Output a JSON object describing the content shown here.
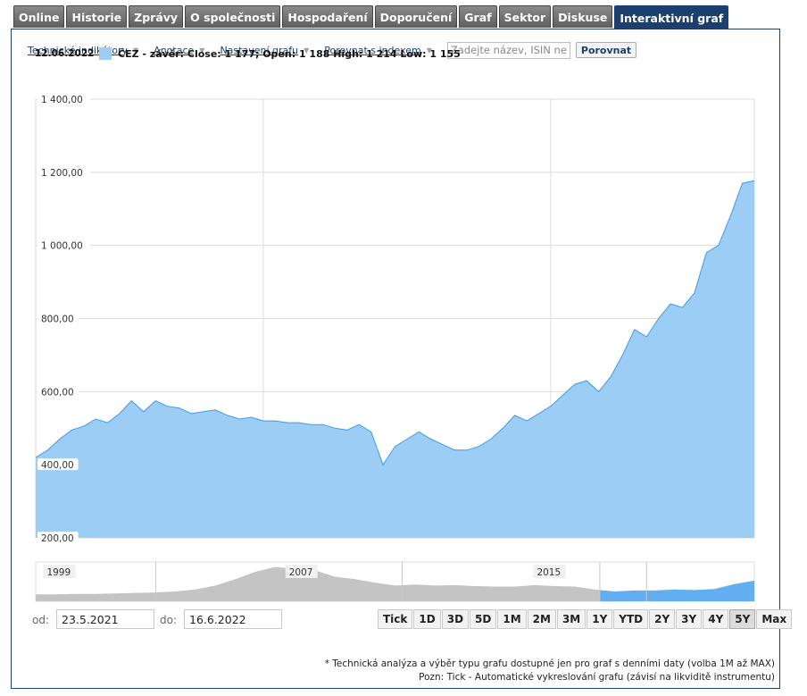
{
  "tabs": [
    "Online",
    "Historie",
    "Zprávy",
    "O společnosti",
    "Hospodaření",
    "Doporučení",
    "Graf",
    "Sektor",
    "Diskuse",
    "Interaktivní graf"
  ],
  "active_tab": "Interaktivní graf",
  "toolbar": {
    "indicators_label": "Technické indikátory",
    "annotations_label": "Anotace",
    "settings_label": "Nastavení grafu",
    "compare_index_label": "Porovnat s indexem",
    "compare_placeholder": "Zadejte název, ISIN neb",
    "compare_button": "Porovnat"
  },
  "legend": {
    "date": "12.06.2022",
    "text": "ČEZ - závěr: Close: 1 177; Open: 1 188 High: 1 214 Low: 1 155",
    "color": "#9ccdf5"
  },
  "range": {
    "from_label": "od:",
    "from_value": "23.5.2021",
    "to_label": "do:",
    "to_value": "16.6.2022"
  },
  "zoom_buttons": [
    "Tick",
    "1D",
    "3D",
    "5D",
    "1M",
    "2M",
    "3M",
    "1Y",
    "YTD",
    "2Y",
    "3Y",
    "4Y",
    "5Y",
    "Max"
  ],
  "zoom_active": "5Y",
  "footnotes": [
    "* Technická analýza a výběr typu grafu dostupné jen pro graf s denními daty (volba 1M až MAX)",
    "Pozn: Tick - Automatické vykreslování grafu (závisí na likviditě instrumentu)"
  ],
  "colors": {
    "accent": "#1c3f6e",
    "series_fill": "#9ccdf5",
    "series_line": "#3d9be9",
    "navigator_fill": "#c4c4c4"
  },
  "chart_data": {
    "type": "area",
    "series": [
      {
        "name": "ČEZ",
        "x": [
          "2017-06",
          "2017-07",
          "2017-08",
          "2017-09",
          "2017-10",
          "2017-11",
          "2017-12",
          "2018-01",
          "2018-02",
          "2018-03",
          "2018-04",
          "2018-05",
          "2018-06",
          "2018-07",
          "2018-08",
          "2018-09",
          "2018-10",
          "2018-11",
          "2018-12",
          "2019-01",
          "2019-02",
          "2019-03",
          "2019-04",
          "2019-05",
          "2019-06",
          "2019-07",
          "2019-08",
          "2019-09",
          "2019-10",
          "2019-11",
          "2019-12",
          "2020-01",
          "2020-02",
          "2020-03",
          "2020-04",
          "2020-05",
          "2020-06",
          "2020-07",
          "2020-08",
          "2020-09",
          "2020-10",
          "2020-11",
          "2020-12",
          "2021-01",
          "2021-02",
          "2021-03",
          "2021-04",
          "2021-05",
          "2021-06",
          "2021-07",
          "2021-08",
          "2021-09",
          "2021-10",
          "2021-11",
          "2021-12",
          "2022-01",
          "2022-02",
          "2022-03",
          "2022-04",
          "2022-05",
          "2022-06"
        ],
        "values": [
          420,
          440,
          470,
          495,
          505,
          525,
          515,
          540,
          575,
          545,
          575,
          560,
          555,
          540,
          545,
          550,
          535,
          525,
          530,
          520,
          520,
          515,
          515,
          510,
          510,
          500,
          495,
          510,
          490,
          400,
          450,
          470,
          490,
          470,
          455,
          440,
          440,
          450,
          470,
          500,
          535,
          520,
          540,
          560,
          590,
          620,
          630,
          600,
          640,
          700,
          770,
          750,
          800,
          840,
          830,
          870,
          980,
          1000,
          1080,
          1170,
          1177
        ]
      }
    ],
    "xlim": [
      "2017-06",
      "2022-06"
    ],
    "ylim": [
      200,
      1400
    ],
    "y_ticks": [
      "200,00",
      "400,00",
      "600,00",
      "800,00",
      "1 000,00",
      "1 200,00",
      "1 400,00"
    ],
    "grid": true,
    "navigator": {
      "labels": [
        "1999",
        "2007",
        "2015"
      ],
      "values": [
        14,
        14,
        15,
        15,
        16,
        17,
        18,
        20,
        24,
        32,
        45,
        60,
        70,
        66,
        63,
        50,
        45,
        38,
        32,
        34,
        32,
        33,
        31,
        30,
        30,
        33,
        31,
        30,
        24,
        20,
        22,
        22,
        24,
        23,
        25,
        35,
        42
      ]
    }
  }
}
